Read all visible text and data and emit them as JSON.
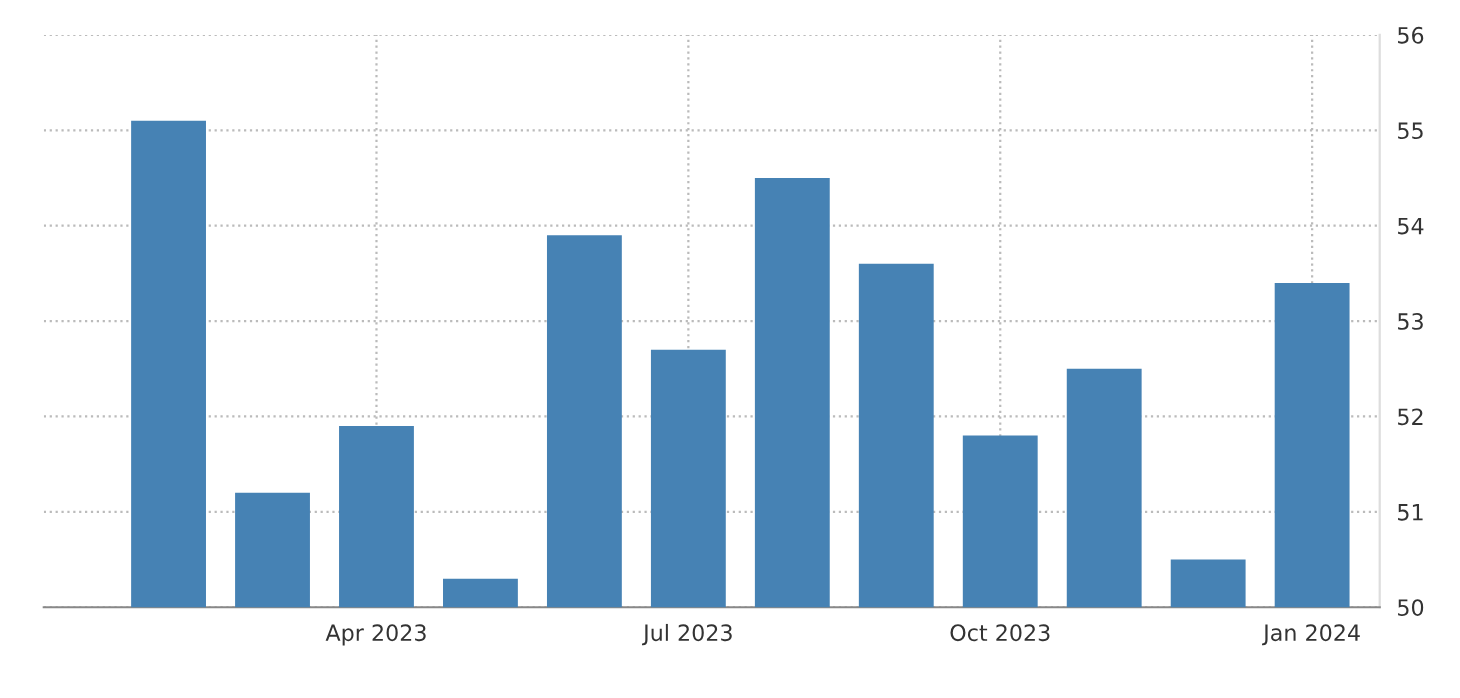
{
  "chart_data": {
    "type": "bar",
    "categories": [
      null,
      null,
      "Apr 2023",
      null,
      null,
      "Jul 2023",
      null,
      null,
      "Oct 2023",
      null,
      null,
      "Jan 2024"
    ],
    "values": [
      55.1,
      51.2,
      51.9,
      50.3,
      53.9,
      52.7,
      54.5,
      53.6,
      51.8,
      52.5,
      50.5,
      53.4
    ],
    "color": "#4682b4",
    "ylim": [
      50,
      56
    ],
    "yticks": [
      50,
      51,
      52,
      53,
      54,
      55,
      56
    ],
    "grid": true
  }
}
